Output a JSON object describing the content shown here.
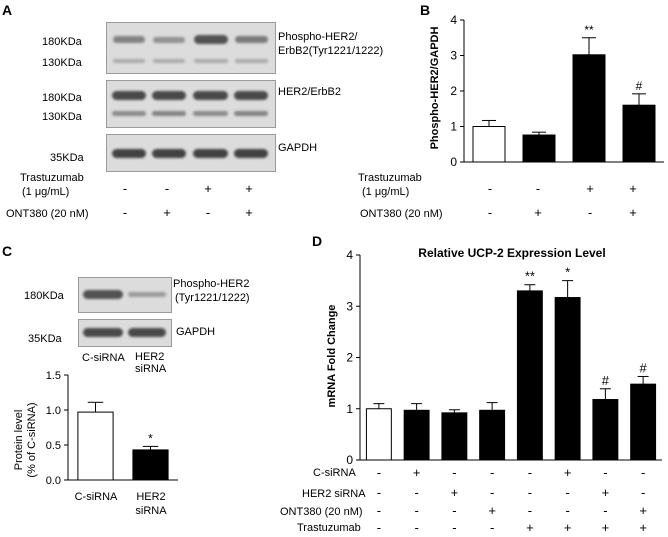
{
  "panelA": {
    "label": "A",
    "marker_180": "180KDa",
    "marker_130": "130KDa",
    "marker_35": "35KDa",
    "blot1_label_line1": "Phospho-HER2/",
    "blot1_label_line2": "ErbB2(Tyr1221/1222)",
    "blot2_label": "HER2/ErbB2",
    "blot3_label": "GAPDH",
    "treat1_line1": "Trastuzumab",
    "treat1_line2": "(1 μg/mL)",
    "treat2": "ONT380 (20 nM)",
    "treat1_signs": [
      "-",
      "-",
      "+",
      "+"
    ],
    "treat2_signs": [
      "-",
      "+",
      "-",
      "+"
    ]
  },
  "panelB": {
    "label": "B",
    "treat1_line1": "Trastuzumab",
    "treat1_line2": "(1 μg/mL)",
    "treat2": "ONT380 (20 nM)",
    "treat1_signs": [
      "-",
      "-",
      "+",
      "+"
    ],
    "treat2_signs": [
      "-",
      "+",
      "-",
      "+"
    ]
  },
  "panelC": {
    "label": "C",
    "marker_180": "180KDa",
    "marker_35": "35KDa",
    "blot1_label_line1": "Phospho-HER2",
    "blot1_label_line2": "(Tyr1221/1222)",
    "blot2_label": "GAPDH",
    "lane1": "C-siRNA",
    "lane2_line1": "HER2",
    "lane2_line2": "siRNA"
  },
  "panelD": {
    "label": "D",
    "rows": [
      {
        "label": "C-siRNA",
        "signs": [
          "-",
          "+",
          "-",
          "-",
          "-",
          "+",
          "-",
          "-"
        ]
      },
      {
        "label": "HER2 siRNA",
        "signs": [
          "-",
          "-",
          "+",
          "-",
          "-",
          "-",
          "+",
          "-"
        ]
      },
      {
        "label": "ONT380 (20 nM)",
        "signs": [
          "-",
          "-",
          "-",
          "+",
          "-",
          "-",
          "-",
          "+"
        ]
      },
      {
        "label": "Trastuzumab",
        "signs": [
          "-",
          "-",
          "-",
          "-",
          "+",
          "+",
          "+",
          "+"
        ]
      }
    ]
  },
  "chart_data": [
    {
      "type": "bar",
      "panel": "B",
      "title": "",
      "ylabel": "Phospho-HER2/GAPDH",
      "ylim": [
        0,
        4
      ],
      "yticks": [
        0,
        1,
        2,
        3,
        4
      ],
      "values": [
        1.0,
        0.76,
        3.02,
        1.6
      ],
      "errors": [
        0.17,
        0.08,
        0.48,
        0.32
      ],
      "fill": [
        "#ffffff",
        "#000000",
        "#000000",
        "#000000"
      ],
      "annotations": [
        "",
        "",
        "**",
        "#"
      ]
    },
    {
      "type": "bar",
      "panel": "C",
      "title": "",
      "ylabel_line1": "Protein level",
      "ylabel_line2": "(% of C-siRNA)",
      "ylim": [
        0,
        1.5
      ],
      "yticks": [
        "0.0",
        "0.5",
        "1.0",
        "1.5"
      ],
      "categories_line1": [
        "C-siRNA",
        "HER2"
      ],
      "categories_line2": [
        "",
        "siRNA"
      ],
      "values": [
        0.97,
        0.43
      ],
      "errors": [
        0.14,
        0.05
      ],
      "fill": [
        "#ffffff",
        "#000000"
      ],
      "annotations": [
        "",
        "*"
      ]
    },
    {
      "type": "bar",
      "panel": "D",
      "title": "Relative UCP-2 Expression Level",
      "ylabel": "mRNA Fold Change",
      "ylim": [
        0,
        4
      ],
      "yticks": [
        0,
        1,
        2,
        3,
        4
      ],
      "values": [
        1.0,
        0.97,
        0.92,
        0.97,
        3.3,
        3.17,
        1.18,
        1.48
      ],
      "errors": [
        0.1,
        0.13,
        0.06,
        0.15,
        0.12,
        0.33,
        0.21,
        0.15
      ],
      "fill": [
        "#ffffff",
        "#000000",
        "#000000",
        "#000000",
        "#000000",
        "#000000",
        "#000000",
        "#000000"
      ],
      "annotations": [
        "",
        "",
        "",
        "",
        "**",
        "*",
        "#",
        "#"
      ]
    }
  ]
}
